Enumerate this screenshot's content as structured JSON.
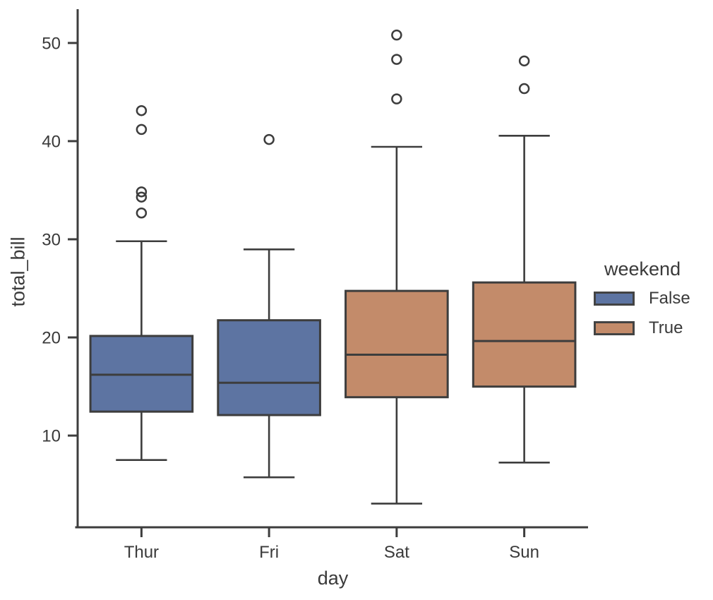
{
  "figure": {
    "background": "#ffffff"
  },
  "chart_data": {
    "type": "box",
    "title": "",
    "xlabel": "day",
    "ylabel": "total_bill",
    "categories": [
      "Thur",
      "Fri",
      "Sat",
      "Sun"
    ],
    "y_ticks": [
      10,
      20,
      30,
      40,
      50
    ],
    "ylim": [
      0.8,
      53.3
    ],
    "grid": false,
    "legend": {
      "title": "weekend",
      "position": "right",
      "entries": [
        {
          "label": "False",
          "color": "#5d74a2"
        },
        {
          "label": "True",
          "color": "#c38b6a"
        }
      ]
    },
    "series": [
      {
        "category": "Thur",
        "weekend": "False",
        "color": "#5d74a2",
        "whisker_low": 7.51,
        "q1": 12.44,
        "median": 16.2,
        "q3": 20.15,
        "whisker_high": 29.8,
        "outliers": [
          32.68,
          34.3,
          34.83,
          41.19,
          43.11
        ]
      },
      {
        "category": "Fri",
        "weekend": "False",
        "color": "#5d74a2",
        "whisker_low": 5.75,
        "q1": 12.09,
        "median": 15.38,
        "q3": 21.75,
        "whisker_high": 28.97,
        "outliers": [
          40.17
        ]
      },
      {
        "category": "Sat",
        "weekend": "True",
        "color": "#c38b6a",
        "whisker_low": 3.07,
        "q1": 13.91,
        "median": 18.24,
        "q3": 24.74,
        "whisker_high": 39.42,
        "outliers": [
          44.3,
          48.33,
          50.81
        ]
      },
      {
        "category": "Sun",
        "weekend": "True",
        "color": "#c38b6a",
        "whisker_low": 7.25,
        "q1": 14.99,
        "median": 19.63,
        "q3": 25.6,
        "whisker_high": 40.55,
        "outliers": [
          45.35,
          48.17
        ]
      }
    ],
    "style": {
      "line_color": "#3d3d3d",
      "text_color": "#3a3a3a",
      "box_width_frac": 0.8,
      "cap_width_frac": 0.5
    }
  }
}
